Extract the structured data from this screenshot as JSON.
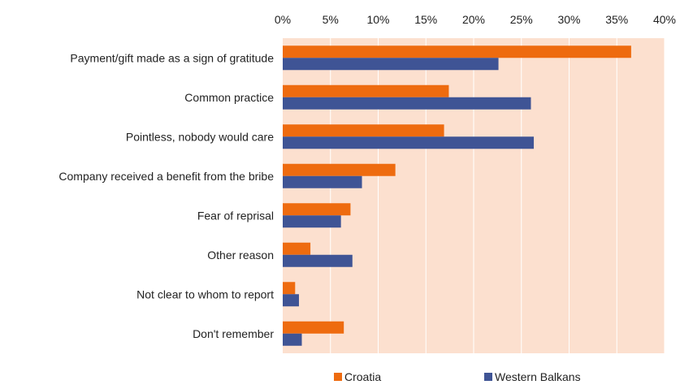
{
  "chart_data": {
    "type": "bar",
    "orientation": "horizontal",
    "categories": [
      "Payment/gift made as a sign of gratitude",
      "Common practice",
      "Pointless, nobody would care",
      "Company received a benefit from the bribe",
      "Fear of reprisal",
      "Other reason",
      "Not clear to whom to report",
      "Don't remember"
    ],
    "series": [
      {
        "name": "Croatia",
        "color": "#ee6b0f",
        "values": [
          36.5,
          17.4,
          16.9,
          11.8,
          7.1,
          2.9,
          1.3,
          6.4
        ]
      },
      {
        "name": "Western Balkans",
        "color": "#3f5495",
        "values": [
          22.6,
          26.0,
          26.3,
          8.3,
          6.1,
          7.3,
          1.7,
          2.0
        ]
      }
    ],
    "xlim": [
      0,
      40
    ],
    "xticks": [
      "0%",
      "5%",
      "10%",
      "15%",
      "20%",
      "25%",
      "30%",
      "35%",
      "40%"
    ],
    "xaxis_position": "top",
    "plot_background": "#fce0cf",
    "grid": true,
    "grid_color": "#ffffff",
    "legend_position": "bottom"
  }
}
